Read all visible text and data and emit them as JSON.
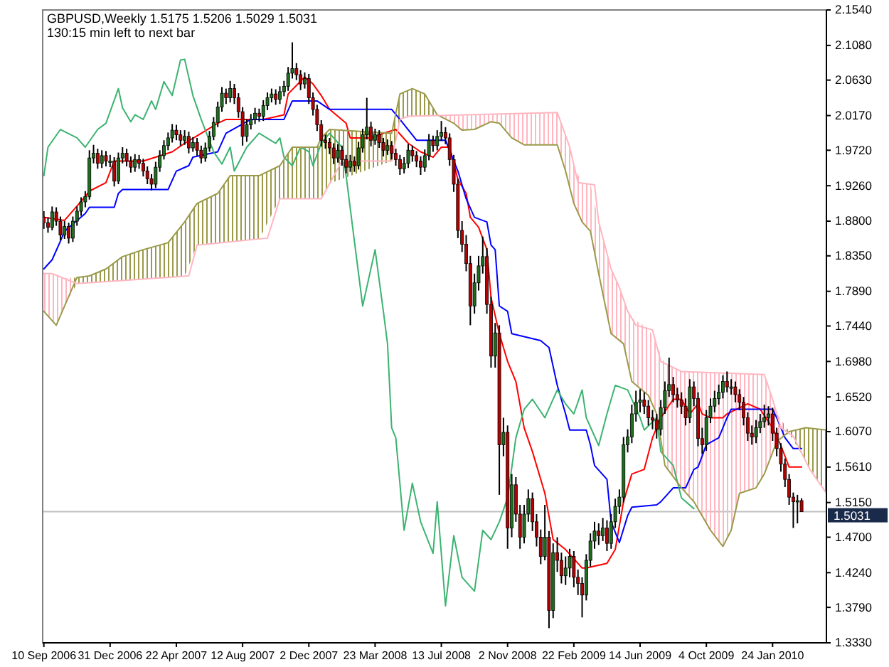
{
  "chart_data": {
    "type": "candlestick",
    "title": "GBPUSD,Weekly  1.5175 1.5206 1.5029 1.5031",
    "subtitle": "130:15 min left to next bar",
    "xlim": [
      "2006-09-08",
      "2010-04-25"
    ],
    "ylim": [
      1.333,
      2.154
    ],
    "xticks": [
      {
        "value": "2006-09-10",
        "label": "10 Sep 2006"
      },
      {
        "value": "2006-12-31",
        "label": "31 Dec 2006"
      },
      {
        "value": "2007-04-22",
        "label": "22 Apr 2007"
      },
      {
        "value": "2007-08-12",
        "label": "12 Aug 2007"
      },
      {
        "value": "2007-12-02",
        "label": "2 Dec 2007"
      },
      {
        "value": "2008-03-23",
        "label": "23 Mar 2008"
      },
      {
        "value": "2008-07-13",
        "label": "13 Jul 2008"
      },
      {
        "value": "2008-11-02",
        "label": "2 Nov 2008"
      },
      {
        "value": "2009-02-22",
        "label": "22 Feb 2009"
      },
      {
        "value": "2009-06-14",
        "label": "14 Jun 2009"
      },
      {
        "value": "2009-10-04",
        "label": "4 Oct 2009"
      },
      {
        "value": "2010-01-24",
        "label": "24 Jan 2010"
      }
    ],
    "yticks": [
      {
        "value": 2.154,
        "label": "2.1540"
      },
      {
        "value": 2.108,
        "label": "2.1080"
      },
      {
        "value": 2.063,
        "label": "2.0630"
      },
      {
        "value": 2.017,
        "label": "2.0170"
      },
      {
        "value": 1.972,
        "label": "1.9720"
      },
      {
        "value": 1.926,
        "label": "1.9260"
      },
      {
        "value": 1.88,
        "label": "1.8800"
      },
      {
        "value": 1.835,
        "label": "1.8350"
      },
      {
        "value": 1.789,
        "label": "1.7890"
      },
      {
        "value": 1.744,
        "label": "1.7440"
      },
      {
        "value": 1.698,
        "label": "1.6980"
      },
      {
        "value": 1.652,
        "label": "1.6520"
      },
      {
        "value": 1.607,
        "label": "1.6070"
      },
      {
        "value": 1.561,
        "label": "1.5610"
      },
      {
        "value": 1.515,
        "label": "1.5150"
      },
      {
        "value": 1.47,
        "label": "1.4700"
      },
      {
        "value": 1.424,
        "label": "1.4240"
      },
      {
        "value": 1.379,
        "label": "1.3790"
      },
      {
        "value": 1.333,
        "label": "1.3330"
      }
    ],
    "ref_lines": [
      {
        "axis": "y",
        "value": 1.5031,
        "label": "1.5031",
        "color": "#c0c0c0"
      }
    ],
    "x": [
      "2006-09-10",
      "2006-09-17",
      "2006-09-24",
      "2006-10-01",
      "2006-10-08",
      "2006-10-15",
      "2006-10-22",
      "2006-10-29",
      "2006-11-05",
      "2006-11-12",
      "2006-11-19",
      "2006-11-26",
      "2006-12-03",
      "2006-12-10",
      "2006-12-17",
      "2006-12-24",
      "2006-12-31",
      "2007-01-07",
      "2007-01-14",
      "2007-01-21",
      "2007-01-28",
      "2007-02-04",
      "2007-02-11",
      "2007-02-18",
      "2007-02-25",
      "2007-03-04",
      "2007-03-11",
      "2007-03-18",
      "2007-03-25",
      "2007-04-01",
      "2007-04-08",
      "2007-04-15",
      "2007-04-22",
      "2007-04-29",
      "2007-05-06",
      "2007-05-13",
      "2007-05-20",
      "2007-05-27",
      "2007-06-03",
      "2007-06-10",
      "2007-06-17",
      "2007-06-24",
      "2007-07-01",
      "2007-07-08",
      "2007-07-15",
      "2007-07-22",
      "2007-07-29",
      "2007-08-05",
      "2007-08-12",
      "2007-08-19",
      "2007-08-26",
      "2007-09-02",
      "2007-09-09",
      "2007-09-16",
      "2007-09-23",
      "2007-09-30",
      "2007-10-07",
      "2007-10-14",
      "2007-10-21",
      "2007-10-28",
      "2007-11-04",
      "2007-11-11",
      "2007-11-18",
      "2007-11-25",
      "2007-12-02",
      "2007-12-09",
      "2007-12-16",
      "2007-12-23",
      "2007-12-30",
      "2008-01-06",
      "2008-01-13",
      "2008-01-20",
      "2008-01-27",
      "2008-02-03",
      "2008-02-10",
      "2008-02-17",
      "2008-02-24",
      "2008-03-02",
      "2008-03-09",
      "2008-03-16",
      "2008-03-23",
      "2008-03-30",
      "2008-04-06",
      "2008-04-13",
      "2008-04-20",
      "2008-04-27",
      "2008-05-04",
      "2008-05-11",
      "2008-05-18",
      "2008-05-25",
      "2008-06-01",
      "2008-06-08",
      "2008-06-15",
      "2008-06-22",
      "2008-06-29",
      "2008-07-06",
      "2008-07-13",
      "2008-07-20",
      "2008-07-27",
      "2008-08-03",
      "2008-08-10",
      "2008-08-17",
      "2008-08-24",
      "2008-08-31",
      "2008-09-07",
      "2008-09-14",
      "2008-09-21",
      "2008-09-28",
      "2008-10-05",
      "2008-10-12",
      "2008-10-19",
      "2008-10-26",
      "2008-11-02",
      "2008-11-09",
      "2008-11-16",
      "2008-11-23",
      "2008-11-30",
      "2008-12-07",
      "2008-12-14",
      "2008-12-21",
      "2008-12-28",
      "2009-01-04",
      "2009-01-11",
      "2009-01-18",
      "2009-01-25",
      "2009-02-01",
      "2009-02-08",
      "2009-02-15",
      "2009-02-22",
      "2009-03-01",
      "2009-03-08",
      "2009-03-15",
      "2009-03-22",
      "2009-03-29",
      "2009-04-05",
      "2009-04-12",
      "2009-04-19",
      "2009-04-26",
      "2009-05-03",
      "2009-05-10",
      "2009-05-17",
      "2009-05-24",
      "2009-05-31",
      "2009-06-07",
      "2009-06-14",
      "2009-06-21",
      "2009-06-28",
      "2009-07-05",
      "2009-07-12",
      "2009-07-19",
      "2009-07-26",
      "2009-08-02",
      "2009-08-09",
      "2009-08-16",
      "2009-08-23",
      "2009-08-30",
      "2009-09-06",
      "2009-09-13",
      "2009-09-20",
      "2009-09-27",
      "2009-10-04",
      "2009-10-11",
      "2009-10-18",
      "2009-10-25",
      "2009-11-01",
      "2009-11-08",
      "2009-11-15",
      "2009-11-22",
      "2009-11-29",
      "2009-12-06",
      "2009-12-13",
      "2009-12-20",
      "2009-12-27",
      "2010-01-03",
      "2010-01-10",
      "2010-01-17",
      "2010-01-24",
      "2010-01-31",
      "2010-02-07",
      "2010-02-14",
      "2010-02-21",
      "2010-02-28",
      "2010-03-07",
      "2010-03-14"
    ],
    "ohlc": [
      [
        1.885,
        1.893,
        1.87,
        1.878
      ],
      [
        1.878,
        1.885,
        1.865,
        1.872
      ],
      [
        1.872,
        1.899,
        1.868,
        1.892
      ],
      [
        1.892,
        1.898,
        1.874,
        1.88
      ],
      [
        1.88,
        1.886,
        1.855,
        1.862
      ],
      [
        1.862,
        1.88,
        1.857,
        1.873
      ],
      [
        1.873,
        1.878,
        1.851,
        1.858
      ],
      [
        1.858,
        1.886,
        1.853,
        1.88
      ],
      [
        1.88,
        1.899,
        1.874,
        1.893
      ],
      [
        1.893,
        1.911,
        1.887,
        1.905
      ],
      [
        1.905,
        1.919,
        1.898,
        1.912
      ],
      [
        1.912,
        1.972,
        1.908,
        1.962
      ],
      [
        1.962,
        1.979,
        1.955,
        1.968
      ],
      [
        1.968,
        1.974,
        1.948,
        1.955
      ],
      [
        1.955,
        1.972,
        1.949,
        1.965
      ],
      [
        1.965,
        1.971,
        1.951,
        1.958
      ],
      [
        1.958,
        1.966,
        1.95,
        1.958
      ],
      [
        1.958,
        1.963,
        1.925,
        1.932
      ],
      [
        1.932,
        1.969,
        1.928,
        1.962
      ],
      [
        1.962,
        1.976,
        1.955,
        1.968
      ],
      [
        1.968,
        1.974,
        1.951,
        1.958
      ],
      [
        1.958,
        1.964,
        1.943,
        1.95
      ],
      [
        1.95,
        1.967,
        1.944,
        1.96
      ],
      [
        1.96,
        1.966,
        1.948,
        1.955
      ],
      [
        1.955,
        1.961,
        1.938,
        1.945
      ],
      [
        1.945,
        1.951,
        1.928,
        1.935
      ],
      [
        1.935,
        1.941,
        1.92,
        1.928
      ],
      [
        1.928,
        1.957,
        1.923,
        1.95
      ],
      [
        1.95,
        1.972,
        1.944,
        1.965
      ],
      [
        1.965,
        1.985,
        1.96,
        1.978
      ],
      [
        1.978,
        1.995,
        1.972,
        1.988
      ],
      [
        1.988,
        2.006,
        1.982,
        1.998
      ],
      [
        1.998,
        2.005,
        1.985,
        1.992
      ],
      [
        1.992,
        1.998,
        1.978,
        1.985
      ],
      [
        1.985,
        1.998,
        1.979,
        1.99
      ],
      [
        1.99,
        1.996,
        1.968,
        1.975
      ],
      [
        1.975,
        1.989,
        1.97,
        1.982
      ],
      [
        1.982,
        1.988,
        1.965,
        1.972
      ],
      [
        1.972,
        1.978,
        1.955,
        1.962
      ],
      [
        1.962,
        1.982,
        1.957,
        1.975
      ],
      [
        1.975,
        1.997,
        1.97,
        1.99
      ],
      [
        1.99,
        2.015,
        1.985,
        2.008
      ],
      [
        2.008,
        2.035,
        2.002,
        2.028
      ],
      [
        2.028,
        2.054,
        2.022,
        2.046
      ],
      [
        2.046,
        2.052,
        2.032,
        2.04
      ],
      [
        2.04,
        2.062,
        2.034,
        2.052
      ],
      [
        2.052,
        2.058,
        2.032,
        2.04
      ],
      [
        2.04,
        2.046,
        2.014,
        2.022
      ],
      [
        2.022,
        2.028,
        1.978,
        1.99
      ],
      [
        1.99,
        2.012,
        1.983,
        2.005
      ],
      [
        2.005,
        2.019,
        1.999,
        2.012
      ],
      [
        2.012,
        2.027,
        2.006,
        2.02
      ],
      [
        2.02,
        2.026,
        2.009,
        2.016
      ],
      [
        2.016,
        2.037,
        2.01,
        2.03
      ],
      [
        2.03,
        2.047,
        2.024,
        2.04
      ],
      [
        2.04,
        2.052,
        2.034,
        2.045
      ],
      [
        2.045,
        2.051,
        2.031,
        2.038
      ],
      [
        2.038,
        2.055,
        2.032,
        2.048
      ],
      [
        2.048,
        2.062,
        2.042,
        2.055
      ],
      [
        2.055,
        2.08,
        2.049,
        2.072
      ],
      [
        2.072,
        2.112,
        2.065,
        2.078
      ],
      [
        2.078,
        2.085,
        2.063,
        2.07
      ],
      [
        2.07,
        2.076,
        2.05,
        2.058
      ],
      [
        2.058,
        2.073,
        2.052,
        2.065
      ],
      [
        2.065,
        2.071,
        2.032,
        2.04
      ],
      [
        2.04,
        2.047,
        2.017,
        2.025
      ],
      [
        2.025,
        2.031,
        1.997,
        2.005
      ],
      [
        2.005,
        2.011,
        1.977,
        1.985
      ],
      [
        1.985,
        1.992,
        1.974,
        1.982
      ],
      [
        1.982,
        1.988,
        1.967,
        1.975
      ],
      [
        1.975,
        1.981,
        1.954,
        1.962
      ],
      [
        1.962,
        1.98,
        1.956,
        1.972
      ],
      [
        1.972,
        1.978,
        1.952,
        1.96
      ],
      [
        1.96,
        1.966,
        1.942,
        1.95
      ],
      [
        1.95,
        1.966,
        1.944,
        1.958
      ],
      [
        1.958,
        1.964,
        1.944,
        1.952
      ],
      [
        1.952,
        1.983,
        1.947,
        1.975
      ],
      [
        1.975,
        2.0,
        1.969,
        1.992
      ],
      [
        1.992,
        2.04,
        1.986,
        2.002
      ],
      [
        2.002,
        2.009,
        1.977,
        1.985
      ],
      [
        1.985,
        2.0,
        1.979,
        1.992
      ],
      [
        1.992,
        1.998,
        1.975,
        1.982
      ],
      [
        1.982,
        1.988,
        1.964,
        1.972
      ],
      [
        1.972,
        1.986,
        1.966,
        1.978
      ],
      [
        1.978,
        1.984,
        1.96,
        1.968
      ],
      [
        1.968,
        1.974,
        1.952,
        1.96
      ],
      [
        1.96,
        1.966,
        1.94,
        1.948
      ],
      [
        1.948,
        1.963,
        1.942,
        1.955
      ],
      [
        1.955,
        1.98,
        1.949,
        1.972
      ],
      [
        1.972,
        1.978,
        1.957,
        1.965
      ],
      [
        1.965,
        1.971,
        1.95,
        1.958
      ],
      [
        1.958,
        1.964,
        1.94,
        1.95
      ],
      [
        1.95,
        1.973,
        1.944,
        1.965
      ],
      [
        1.965,
        1.993,
        1.959,
        1.985
      ],
      [
        1.985,
        1.991,
        1.97,
        1.978
      ],
      [
        1.978,
        1.998,
        1.972,
        1.99
      ],
      [
        1.99,
        2.01,
        1.984,
        1.995
      ],
      [
        1.995,
        2.002,
        1.98,
        1.988
      ],
      [
        1.988,
        1.994,
        1.952,
        1.96
      ],
      [
        1.96,
        1.966,
        1.918,
        1.928
      ],
      [
        1.928,
        1.935,
        1.858,
        1.868
      ],
      [
        1.868,
        1.88,
        1.84,
        1.85
      ],
      [
        1.85,
        1.862,
        1.815,
        1.825
      ],
      [
        1.825,
        1.835,
        1.745,
        1.77
      ],
      [
        1.77,
        1.812,
        1.76,
        1.8
      ],
      [
        1.8,
        1.835,
        1.79,
        1.822
      ],
      [
        1.822,
        1.86,
        1.812,
        1.834
      ],
      [
        1.834,
        1.845,
        1.76,
        1.772
      ],
      [
        1.772,
        1.782,
        1.69,
        1.705
      ],
      [
        1.705,
        1.748,
        1.69,
        1.735
      ],
      [
        1.735,
        1.745,
        1.525,
        1.59
      ],
      [
        1.59,
        1.625,
        1.575,
        1.606
      ],
      [
        1.606,
        1.615,
        1.455,
        1.482
      ],
      [
        1.482,
        1.552,
        1.47,
        1.538
      ],
      [
        1.538,
        1.548,
        1.49,
        1.5
      ],
      [
        1.5,
        1.512,
        1.455,
        1.47
      ],
      [
        1.47,
        1.512,
        1.462,
        1.5
      ],
      [
        1.5,
        1.532,
        1.49,
        1.52
      ],
      [
        1.52,
        1.528,
        1.478,
        1.49
      ],
      [
        1.49,
        1.5,
        1.458,
        1.47
      ],
      [
        1.47,
        1.48,
        1.435,
        1.445
      ],
      [
        1.445,
        1.512,
        1.44,
        1.47
      ],
      [
        1.47,
        1.478,
        1.352,
        1.375
      ],
      [
        1.375,
        1.462,
        1.365,
        1.45
      ],
      [
        1.45,
        1.47,
        1.425,
        1.44
      ],
      [
        1.44,
        1.45,
        1.41,
        1.42
      ],
      [
        1.42,
        1.445,
        1.408,
        1.43
      ],
      [
        1.43,
        1.455,
        1.418,
        1.445
      ],
      [
        1.445,
        1.452,
        1.405,
        1.418
      ],
      [
        1.418,
        1.428,
        1.395,
        1.41
      ],
      [
        1.41,
        1.418,
        1.366,
        1.395
      ],
      [
        1.395,
        1.448,
        1.388,
        1.44
      ],
      [
        1.44,
        1.475,
        1.432,
        1.465
      ],
      [
        1.465,
        1.49,
        1.455,
        1.478
      ],
      [
        1.478,
        1.488,
        1.46,
        1.472
      ],
      [
        1.472,
        1.495,
        1.465,
        1.482
      ],
      [
        1.482,
        1.492,
        1.452,
        1.462
      ],
      [
        1.462,
        1.5,
        1.455,
        1.49
      ],
      [
        1.49,
        1.52,
        1.482,
        1.51
      ],
      [
        1.51,
        1.532,
        1.5,
        1.522
      ],
      [
        1.522,
        1.6,
        1.515,
        1.59
      ],
      [
        1.59,
        1.61,
        1.58,
        1.6
      ],
      [
        1.6,
        1.642,
        1.592,
        1.63
      ],
      [
        1.63,
        1.66,
        1.62,
        1.645
      ],
      [
        1.645,
        1.662,
        1.632,
        1.648
      ],
      [
        1.648,
        1.658,
        1.63,
        1.64
      ],
      [
        1.64,
        1.648,
        1.615,
        1.625
      ],
      [
        1.625,
        1.635,
        1.61,
        1.622
      ],
      [
        1.622,
        1.63,
        1.598,
        1.61
      ],
      [
        1.61,
        1.648,
        1.602,
        1.638
      ],
      [
        1.638,
        1.672,
        1.63,
        1.66
      ],
      [
        1.66,
        1.703,
        1.652,
        1.668
      ],
      [
        1.668,
        1.678,
        1.645,
        1.655
      ],
      [
        1.655,
        1.664,
        1.638,
        1.648
      ],
      [
        1.648,
        1.658,
        1.63,
        1.64
      ],
      [
        1.64,
        1.65,
        1.615,
        1.625
      ],
      [
        1.625,
        1.675,
        1.618,
        1.665
      ],
      [
        1.665,
        1.672,
        1.64,
        1.65
      ],
      [
        1.65,
        1.658,
        1.588,
        1.598
      ],
      [
        1.598,
        1.612,
        1.578,
        1.59
      ],
      [
        1.59,
        1.635,
        1.582,
        1.625
      ],
      [
        1.625,
        1.65,
        1.618,
        1.64
      ],
      [
        1.64,
        1.66,
        1.632,
        1.65
      ],
      [
        1.65,
        1.668,
        1.642,
        1.658
      ],
      [
        1.658,
        1.68,
        1.65,
        1.672
      ],
      [
        1.672,
        1.685,
        1.658,
        1.665
      ],
      [
        1.665,
        1.675,
        1.655,
        1.665
      ],
      [
        1.665,
        1.672,
        1.645,
        1.655
      ],
      [
        1.655,
        1.662,
        1.635,
        1.645
      ],
      [
        1.645,
        1.652,
        1.615,
        1.625
      ],
      [
        1.625,
        1.632,
        1.595,
        1.605
      ],
      [
        1.605,
        1.615,
        1.59,
        1.6
      ],
      [
        1.6,
        1.622,
        1.592,
        1.612
      ],
      [
        1.612,
        1.63,
        1.605,
        1.62
      ],
      [
        1.62,
        1.642,
        1.612,
        1.625
      ],
      [
        1.625,
        1.64,
        1.615,
        1.63
      ],
      [
        1.63,
        1.638,
        1.595,
        1.605
      ],
      [
        1.605,
        1.612,
        1.575,
        1.585
      ],
      [
        1.585,
        1.592,
        1.555,
        1.565
      ],
      [
        1.565,
        1.572,
        1.535,
        1.545
      ],
      [
        1.545,
        1.552,
        1.512,
        1.522
      ],
      [
        1.522,
        1.528,
        1.482,
        1.516
      ],
      [
        1.516,
        1.525,
        1.488,
        1.5175
      ],
      [
        1.5175,
        1.5206,
        1.5029,
        1.5031
      ]
    ],
    "series": [
      {
        "type": "line",
        "color": "#ff0000",
        "x": [
          "2006-09-10",
          "2006-10-15",
          "2006-11-19",
          "2006-11-26",
          "2006-12-24",
          "2007-01-07",
          "2007-02-25",
          "2007-03-18",
          "2007-04-15",
          "2007-05-06",
          "2007-07-01",
          "2007-07-15",
          "2007-08-12",
          "2007-09-16",
          "2007-10-21",
          "2007-10-28",
          "2007-11-25",
          "2007-12-09",
          "2007-12-23",
          "2008-01-06",
          "2008-02-03",
          "2008-02-10",
          "2008-03-16",
          "2008-04-06",
          "2008-04-27",
          "2008-05-18",
          "2008-06-08",
          "2008-06-29",
          "2008-07-13",
          "2008-07-27",
          "2008-08-10",
          "2008-08-24",
          "2008-08-31",
          "2008-09-14",
          "2008-09-28",
          "2008-10-05",
          "2008-10-19",
          "2008-11-02",
          "2008-11-16",
          "2008-11-30",
          "2008-12-14",
          "2009-01-04",
          "2009-01-18",
          "2009-02-08",
          "2009-03-08",
          "2009-03-15",
          "2009-04-19",
          "2009-05-03",
          "2009-05-17",
          "2009-05-31",
          "2009-06-21",
          "2009-07-05",
          "2009-07-19",
          "2009-08-09",
          "2009-08-23",
          "2009-09-06",
          "2009-09-20",
          "2009-09-27",
          "2009-10-11",
          "2009-11-01",
          "2009-11-08",
          "2009-12-13",
          "2010-01-03",
          "2010-01-24",
          "2010-02-07",
          "2010-02-21",
          "2010-03-14"
        ],
        "values": [
          1.885,
          1.881,
          1.912,
          1.919,
          1.93,
          1.958,
          1.958,
          1.963,
          1.97,
          1.981,
          2.007,
          2.012,
          2.012,
          2.012,
          2.018,
          2.045,
          2.067,
          2.058,
          2.043,
          2.025,
          2.007,
          1.988,
          1.988,
          1.994,
          1.999,
          1.981,
          1.97,
          1.963,
          1.976,
          1.976,
          1.934,
          1.916,
          1.885,
          1.872,
          1.843,
          1.781,
          1.734,
          1.698,
          1.672,
          1.612,
          1.581,
          1.527,
          1.467,
          1.454,
          1.43,
          1.43,
          1.436,
          1.454,
          1.516,
          1.552,
          1.558,
          1.599,
          1.625,
          1.649,
          1.649,
          1.63,
          1.643,
          1.63,
          1.625,
          1.625,
          1.63,
          1.643,
          1.636,
          1.612,
          1.589,
          1.561,
          1.561
        ]
      },
      {
        "type": "line",
        "color": "#0000ff",
        "x": [
          "2006-09-10",
          "2006-09-24",
          "2006-10-08",
          "2006-10-15",
          "2006-11-19",
          "2006-11-26",
          "2007-01-07",
          "2007-01-14",
          "2007-01-21",
          "2007-04-08",
          "2007-04-22",
          "2007-05-13",
          "2007-05-20",
          "2007-07-01",
          "2007-07-15",
          "2007-08-26",
          "2007-10-21",
          "2007-11-04",
          "2007-12-16",
          "2008-01-06",
          "2008-04-20",
          "2008-05-04",
          "2008-06-01",
          "2008-07-20",
          "2008-08-10",
          "2008-08-24",
          "2008-09-07",
          "2008-09-28",
          "2008-10-05",
          "2008-10-12",
          "2008-10-19",
          "2008-11-02",
          "2008-11-09",
          "2008-12-28",
          "2009-01-11",
          "2009-01-25",
          "2009-02-08",
          "2009-02-15",
          "2009-03-15",
          "2009-03-22",
          "2009-03-29",
          "2009-04-19",
          "2009-04-26",
          "2009-05-10",
          "2009-05-24",
          "2009-05-31",
          "2009-07-12",
          "2009-07-19",
          "2009-08-09",
          "2009-08-30",
          "2009-09-13",
          "2009-09-20",
          "2009-10-04",
          "2009-10-25",
          "2009-11-08",
          "2009-11-15",
          "2010-01-24",
          "2010-01-31",
          "2010-02-14",
          "2010-02-28",
          "2010-03-14"
        ],
        "values": [
          1.818,
          1.83,
          1.854,
          1.867,
          1.89,
          1.898,
          1.898,
          1.916,
          1.921,
          1.921,
          1.945,
          1.952,
          1.963,
          1.97,
          1.994,
          2.012,
          2.012,
          2.036,
          2.036,
          2.025,
          2.025,
          2.012,
          1.985,
          1.985,
          1.945,
          1.909,
          1.885,
          1.879,
          1.849,
          1.843,
          1.77,
          1.763,
          1.734,
          1.725,
          1.716,
          1.667,
          1.63,
          1.609,
          1.609,
          1.59,
          1.563,
          1.545,
          1.49,
          1.463,
          1.498,
          1.509,
          1.512,
          1.516,
          1.534,
          1.534,
          1.558,
          1.561,
          1.59,
          1.599,
          1.625,
          1.636,
          1.636,
          1.625,
          1.599,
          1.585,
          1.585
        ]
      },
      {
        "type": "line",
        "color": "#3cb371",
        "x": [
          "2006-09-10",
          "2006-09-17",
          "2006-10-08",
          "2006-11-05",
          "2006-11-19",
          "2006-12-10",
          "2006-12-24",
          "2007-01-14",
          "2007-01-21",
          "2007-02-04",
          "2007-02-11",
          "2007-02-25",
          "2007-03-11",
          "2007-03-18",
          "2007-04-01",
          "2007-04-15",
          "2007-04-29",
          "2007-05-06",
          "2007-05-20",
          "2007-06-03",
          "2007-06-24",
          "2007-07-08",
          "2007-07-22",
          "2007-07-29",
          "2007-08-19",
          "2007-09-09",
          "2007-10-07",
          "2007-10-14",
          "2007-10-21",
          "2007-11-04",
          "2007-11-18",
          "2007-12-02",
          "2007-12-09",
          "2007-12-23",
          "2008-01-06",
          "2008-01-27",
          "2008-02-03",
          "2008-02-17",
          "2008-03-02",
          "2008-03-23",
          "2008-04-06",
          "2008-04-13",
          "2008-04-20",
          "2008-04-27",
          "2008-05-11",
          "2008-05-25",
          "2008-06-08",
          "2008-06-29",
          "2008-07-06",
          "2008-07-20",
          "2008-08-03",
          "2008-08-17",
          "2008-09-07",
          "2008-09-21",
          "2008-10-05",
          "2008-10-19",
          "2008-11-02",
          "2008-11-16",
          "2008-11-30",
          "2008-12-14",
          "2009-01-04",
          "2009-01-25",
          "2009-02-08",
          "2009-02-22",
          "2009-03-08",
          "2009-03-15",
          "2009-04-05",
          "2009-04-19",
          "2009-05-03",
          "2009-05-24",
          "2009-06-14",
          "2009-06-21",
          "2009-07-12",
          "2009-07-19",
          "2009-08-09",
          "2009-08-23",
          "2009-09-13"
        ],
        "values": [
          1.939,
          1.976,
          1.999,
          1.988,
          1.976,
          1.999,
          2.007,
          2.052,
          2.027,
          2.009,
          2.018,
          2.012,
          2.036,
          2.025,
          2.061,
          2.043,
          2.089,
          2.09,
          2.043,
          2.012,
          1.97,
          1.954,
          1.976,
          1.945,
          1.976,
          1.994,
          1.981,
          1.988,
          1.963,
          1.952,
          1.976,
          1.97,
          1.952,
          1.981,
          1.994,
          1.976,
          1.939,
          1.854,
          1.77,
          1.843,
          1.763,
          1.721,
          1.612,
          1.599,
          1.479,
          1.54,
          1.49,
          1.449,
          1.516,
          1.381,
          1.472,
          1.418,
          1.4,
          1.479,
          1.467,
          1.49,
          1.521,
          1.599,
          1.636,
          1.649,
          1.625,
          1.661,
          1.643,
          1.63,
          1.661,
          1.625,
          1.589,
          1.63,
          1.667,
          1.661,
          1.625,
          1.609,
          1.625,
          1.581,
          1.563,
          1.521,
          1.507
        ]
      },
      {
        "type": "line",
        "color": "#9a9a4a",
        "x": [
          "2006-09-10",
          "2006-10-01",
          "2006-10-15",
          "2006-11-05",
          "2006-11-26",
          "2006-12-24",
          "2007-01-21",
          "2007-02-25",
          "2007-04-08",
          "2007-05-06",
          "2007-05-27",
          "2007-07-01",
          "2007-07-22",
          "2007-09-09",
          "2007-10-14",
          "2007-11-04",
          "2007-12-16",
          "2007-12-23",
          "2008-01-06",
          "2008-04-20",
          "2008-05-04",
          "2008-05-25",
          "2008-06-15",
          "2008-07-06",
          "2008-08-03",
          "2008-08-17",
          "2008-09-07",
          "2008-10-05",
          "2008-10-19",
          "2008-11-09",
          "2008-11-30",
          "2009-01-25",
          "2009-02-08",
          "2009-02-22",
          "2009-03-08",
          "2009-03-22",
          "2009-04-05",
          "2009-04-26",
          "2009-05-17",
          "2009-05-31",
          "2009-06-28",
          "2009-07-12",
          "2009-07-26",
          "2009-08-23",
          "2009-09-13",
          "2009-10-11",
          "2009-11-01",
          "2009-11-15",
          "2009-11-29",
          "2009-12-27",
          "2010-01-10",
          "2010-01-31",
          "2010-02-21",
          "2010-03-21",
          "2010-04-25"
        ],
        "values": [
          1.763,
          1.745,
          1.77,
          1.807,
          1.809,
          1.818,
          1.834,
          1.843,
          1.852,
          1.879,
          1.903,
          1.916,
          1.939,
          1.939,
          1.952,
          1.976,
          1.976,
          1.988,
          1.999,
          1.994,
          2.045,
          2.052,
          2.045,
          2.018,
          2.007,
          1.998,
          1.999,
          2.009,
          2.007,
          1.988,
          1.979,
          1.979,
          1.945,
          1.903,
          1.879,
          1.867,
          1.812,
          1.734,
          1.721,
          1.672,
          1.654,
          1.63,
          1.563,
          1.534,
          1.516,
          1.479,
          1.458,
          1.479,
          1.527,
          1.534,
          1.552,
          1.594,
          1.607,
          1.612,
          1.609
        ],
        "lower": [
          1.763,
          1.745,
          1.77,
          1.799,
          1.8,
          1.801,
          1.803,
          1.805,
          1.807,
          1.809,
          1.849,
          1.852,
          1.853,
          1.857,
          1.909,
          1.909,
          1.909,
          1.909,
          1.929,
          1.958,
          2.012,
          2.016,
          2.016,
          2.017,
          2.007,
          1.998,
          1.999,
          2.009,
          2.007,
          1.988,
          1.979,
          1.979,
          1.945,
          1.903,
          1.879,
          1.867,
          1.812,
          1.734,
          1.721,
          1.672,
          1.654,
          1.63,
          1.563,
          1.534,
          1.516,
          1.479,
          1.458,
          1.479,
          1.527,
          1.534,
          1.552,
          1.594,
          1.605,
          1.569,
          1.527
        ],
        "upper": [
          1.812,
          1.81,
          1.806,
          1.807,
          1.809,
          1.818,
          1.834,
          1.843,
          1.852,
          1.879,
          1.903,
          1.916,
          1.939,
          1.939,
          1.952,
          1.976,
          1.976,
          1.988,
          1.999,
          1.994,
          2.045,
          2.052,
          2.045,
          2.018,
          2.017,
          2.017,
          2.018,
          2.018,
          2.019,
          2.019,
          2.02,
          2.021,
          1.991,
          1.953,
          1.929,
          1.928,
          1.879,
          1.818,
          1.779,
          1.754,
          1.741,
          1.719,
          1.695,
          1.685,
          1.684,
          1.684,
          1.683,
          1.683,
          1.682,
          1.681,
          1.681,
          1.631,
          1.607,
          1.612,
          1.609
        ]
      },
      {
        "type": "line",
        "color": "#ffb6c1",
        "x": [
          "2006-09-10",
          "2006-09-24",
          "2006-11-05",
          "2007-01-21",
          "2007-05-13",
          "2007-05-27",
          "2007-09-23",
          "2007-10-14",
          "2007-12-16",
          "2007-12-23",
          "2008-01-27",
          "2008-04-20",
          "2008-05-04",
          "2008-05-18",
          "2009-01-25",
          "2009-02-15",
          "2009-03-01",
          "2009-03-29",
          "2009-04-05",
          "2009-04-26",
          "2009-05-10",
          "2009-05-24",
          "2009-06-07",
          "2009-07-05",
          "2009-07-19",
          "2009-08-23",
          "2010-01-10",
          "2010-01-24",
          "2010-02-07",
          "2010-02-28",
          "2010-03-28",
          "2010-04-25"
        ],
        "values": [
          1.812,
          1.812,
          1.799,
          1.803,
          1.809,
          1.849,
          1.858,
          1.909,
          1.909,
          1.909,
          1.958,
          1.958,
          2.012,
          2.016,
          2.021,
          1.976,
          1.93,
          1.927,
          1.879,
          1.818,
          1.794,
          1.763,
          1.745,
          1.739,
          1.698,
          1.685,
          1.681,
          1.649,
          1.612,
          1.601,
          1.558,
          1.527
        ]
      }
    ]
  }
}
